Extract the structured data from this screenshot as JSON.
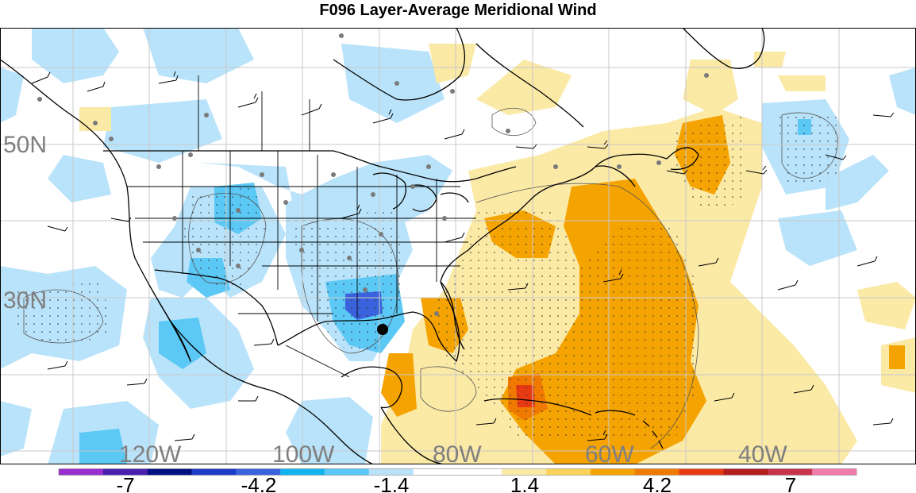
{
  "title": "F096 Layer-Average Meridional Wind",
  "map": {
    "lat_labels": [
      "50N",
      "30N"
    ],
    "lon_labels": [
      "120W",
      "100W",
      "80W",
      "60W",
      "40W"
    ],
    "label_color": "#7f7f7f",
    "grid_color": "#c8c8c8",
    "marker": "storm-center-dot"
  },
  "colorbar": {
    "colors": [
      "#9a2fd0",
      "#4a1fb0",
      "#000f82",
      "#1e3cc8",
      "#3a62dc",
      "#12b4f0",
      "#5bc8f5",
      "#b9e3fa",
      "#ffffff",
      "#ffffff",
      "#fbe9a6",
      "#fbd35a",
      "#f5a300",
      "#f07a00",
      "#e83a12",
      "#b31e1e",
      "#c8324a",
      "#f07aa8"
    ],
    "tick_labels": [
      "-7",
      "-4.2",
      "-1.4",
      "1.4",
      "4.2",
      "7"
    ]
  }
}
